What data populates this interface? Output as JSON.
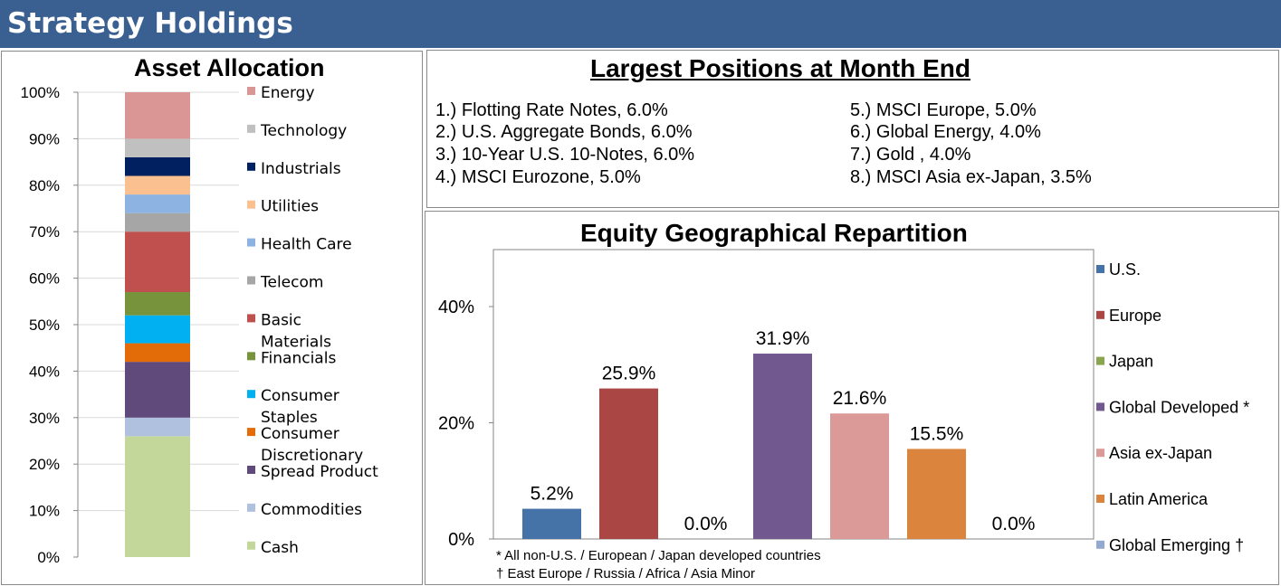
{
  "header": {
    "title": "Strategy Holdings"
  },
  "asset_allocation": {
    "title": "Asset Allocation"
  },
  "positions": {
    "title": "Largest Positions at Month End",
    "left_column": [
      "1.)  Flotting Rate Notes, 6.0%",
      "2.)  U.S. Aggregate Bonds, 6.0%",
      "3.)  10-Year U.S. 10-Notes, 6.0%",
      "4.)  MSCI Eurozone, 5.0%"
    ],
    "right_column": [
      "5.)  MSCI Europe, 5.0%",
      "6.)  Global Energy, 4.0%",
      "7.)  Gold , 4.0%",
      "8.)  MSCI Asia ex-Japan,  3.5%"
    ]
  },
  "geo": {
    "title": "Equity Geographical Repartition",
    "notes": [
      "* All non-U.S. / European / Japan developed countries",
      "† East Europe / Russia / Africa / Asia Minor"
    ]
  },
  "chart_data": [
    {
      "type": "bar",
      "stacked": true,
      "title": "Asset Allocation",
      "ylim": [
        0,
        100
      ],
      "yticks": [
        "0%",
        "10%",
        "20%",
        "30%",
        "40%",
        "50%",
        "60%",
        "70%",
        "80%",
        "90%",
        "100%"
      ],
      "grid": true,
      "legend_position": "right",
      "series": [
        {
          "name": "Cash",
          "value": 26,
          "color": "#c4d79b"
        },
        {
          "name": "Commodities",
          "value": 4,
          "color": "#b0c1e0"
        },
        {
          "name": "Spread Product",
          "value": 12,
          "color": "#604a7b"
        },
        {
          "name": "Consumer Discretionary",
          "value": 4,
          "color": "#e36c09"
        },
        {
          "name": "Consumer Staples",
          "value": 6,
          "color": "#00b0f0"
        },
        {
          "name": "Financials",
          "value": 5,
          "color": "#77933c"
        },
        {
          "name": "Basic Materials",
          "value": 13,
          "color": "#c0504d"
        },
        {
          "name": "Telecom",
          "value": 4,
          "color": "#a6a6a6"
        },
        {
          "name": "Health Care",
          "value": 4,
          "color": "#8db3e2"
        },
        {
          "name": "Utilities",
          "value": 4,
          "color": "#fac090"
        },
        {
          "name": "Industrials",
          "value": 4,
          "color": "#002060"
        },
        {
          "name": "Technology",
          "value": 4,
          "color": "#c0c0c0"
        },
        {
          "name": "Energy",
          "value": 10,
          "color": "#da9694"
        }
      ],
      "legend_order": [
        "Energy",
        "Technology",
        "Industrials",
        "Utilities",
        "Health Care",
        "Telecom",
        "Basic Materials",
        "Financials",
        "Consumer Staples",
        "Consumer Discretionary",
        "Spread Product",
        "Commodities",
        "Cash"
      ]
    },
    {
      "type": "bar",
      "title": "Equity Geographical Repartition",
      "categories": [
        "U.S.",
        "Europe",
        "Japan",
        "Global Developed *",
        "Asia ex-Japan",
        "Latin America",
        "Global Emerging †"
      ],
      "values": [
        5.2,
        25.9,
        0.0,
        31.9,
        21.6,
        15.5,
        0.0
      ],
      "data_labels": [
        "5.2%",
        "25.9%",
        "0.0%",
        "31.9%",
        "21.6%",
        "15.5%",
        "0.0%"
      ],
      "colors": [
        "#4572a7",
        "#aa4643",
        "#89a54e",
        "#71588f",
        "#db9a98",
        "#db843d",
        "#93a9cf"
      ],
      "ylim": [
        0,
        40
      ],
      "yticks": [
        "0%",
        "20%",
        "40%"
      ],
      "legend_position": "right",
      "grid": false
    }
  ]
}
